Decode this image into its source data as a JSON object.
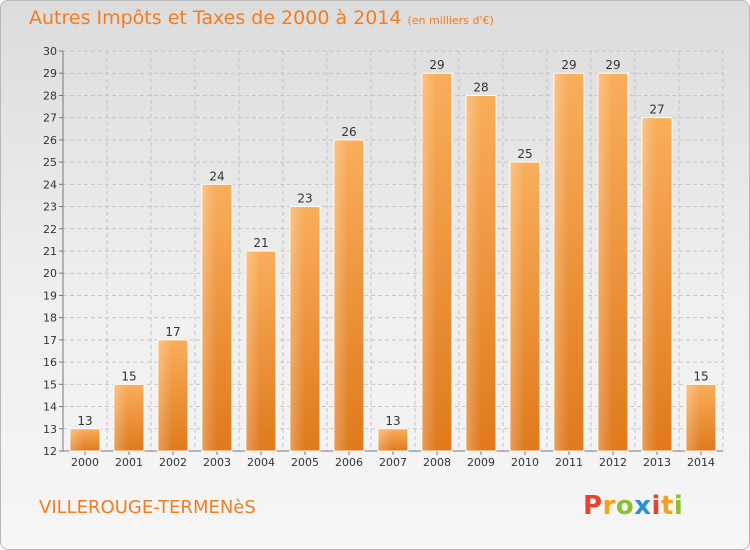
{
  "header": {
    "title": "Autres Impôts et Taxes de 2000 à 2014",
    "subtitle": "(en milliers d'€)"
  },
  "commune_name": "VILLEROUGE-TERMENèS",
  "logo_text": "Proxiti",
  "colors": {
    "bar_light": "#f7a64e",
    "bar_dark": "#e07b1f",
    "accent": "#f07d21",
    "grid": "#c4c4c4"
  },
  "chart_data": {
    "type": "bar",
    "title": "Autres Impôts et Taxes de 2000 à 2014",
    "subtitle": "(en milliers d'€)",
    "categories": [
      "2000",
      "2001",
      "2002",
      "2003",
      "2004",
      "2005",
      "2006",
      "2007",
      "2008",
      "2009",
      "2010",
      "2011",
      "2012",
      "2013",
      "2014"
    ],
    "values": [
      13,
      15,
      17,
      24,
      21,
      23,
      26,
      13,
      29,
      28,
      25,
      29,
      29,
      27,
      15
    ],
    "ylim": [
      12,
      30
    ],
    "yticks": [
      12,
      13,
      14,
      15,
      16,
      17,
      18,
      19,
      20,
      21,
      22,
      23,
      24,
      25,
      26,
      27,
      28,
      29,
      30
    ],
    "grid": true,
    "data_labels": true
  }
}
